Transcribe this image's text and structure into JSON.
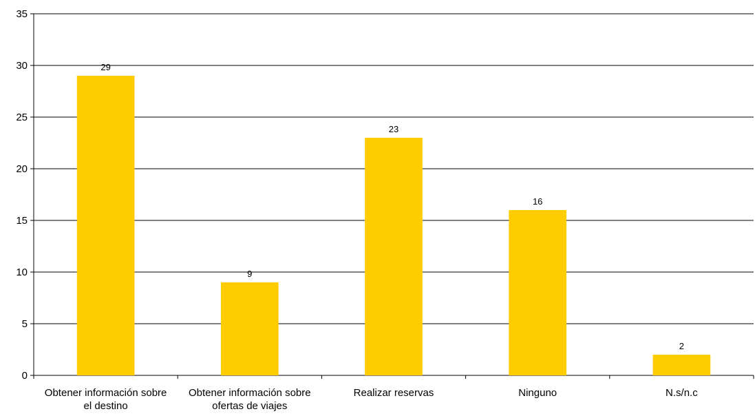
{
  "chart_data": {
    "type": "bar",
    "title": "",
    "xlabel": "",
    "ylabel": "",
    "categories": [
      [
        "Obtener información sobre",
        "el destino"
      ],
      [
        "Obtener información sobre",
        "ofertas de viajes"
      ],
      [
        "Realizar reservas"
      ],
      [
        "Ninguno"
      ],
      [
        "N.s/n.c"
      ]
    ],
    "values": [
      29,
      9,
      23,
      16,
      2
    ],
    "data_labels": [
      "29",
      "9",
      "23",
      "16",
      "2"
    ],
    "ylim": [
      0,
      35
    ],
    "yticks": [
      0,
      5,
      10,
      15,
      20,
      25,
      30,
      35
    ],
    "grid": true,
    "legend": "none",
    "bar_color": "#FFCC00",
    "grid_color": "#000000"
  }
}
